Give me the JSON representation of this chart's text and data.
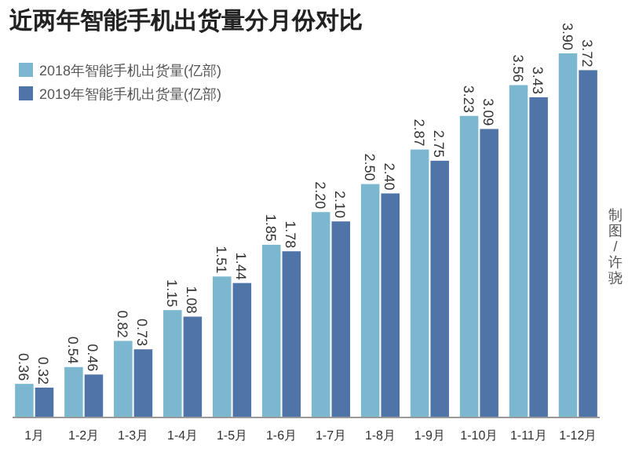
{
  "chart_data": {
    "type": "bar",
    "title": "近两年智能手机出货量分月份对比",
    "categories": [
      "1月",
      "1-2月",
      "1-3月",
      "1-4月",
      "1-5月",
      "1-6月",
      "1-7月",
      "1-8月",
      "1-9月",
      "1-10月",
      "1-11月",
      "1-12月"
    ],
    "series": [
      {
        "name": "2018年智能手机出货量(亿部)",
        "color": "#7bb8cf",
        "values": [
          0.36,
          0.54,
          0.82,
          1.15,
          1.51,
          1.85,
          2.2,
          2.5,
          2.87,
          3.23,
          3.56,
          3.9
        ],
        "value_labels": [
          "0.36",
          "0.54",
          "0.82",
          "1.15",
          "1.51",
          "1.85",
          "2.20",
          "2.50",
          "2.87",
          "3.23",
          "3.56",
          "3.90"
        ]
      },
      {
        "name": "2019年智能手机出货量(亿部)",
        "color": "#4f74a8",
        "values": [
          0.32,
          0.46,
          0.73,
          1.08,
          1.44,
          1.78,
          2.1,
          2.4,
          2.75,
          3.09,
          3.43,
          3.72
        ],
        "value_labels": [
          "0.32",
          "0.46",
          "0.73",
          "1.08",
          "1.44",
          "1.78",
          "2.10",
          "2.40",
          "2.75",
          "3.09",
          "3.43",
          "3.72"
        ]
      }
    ],
    "legend": "top left",
    "annotations": [
      "制图/许骁"
    ]
  }
}
